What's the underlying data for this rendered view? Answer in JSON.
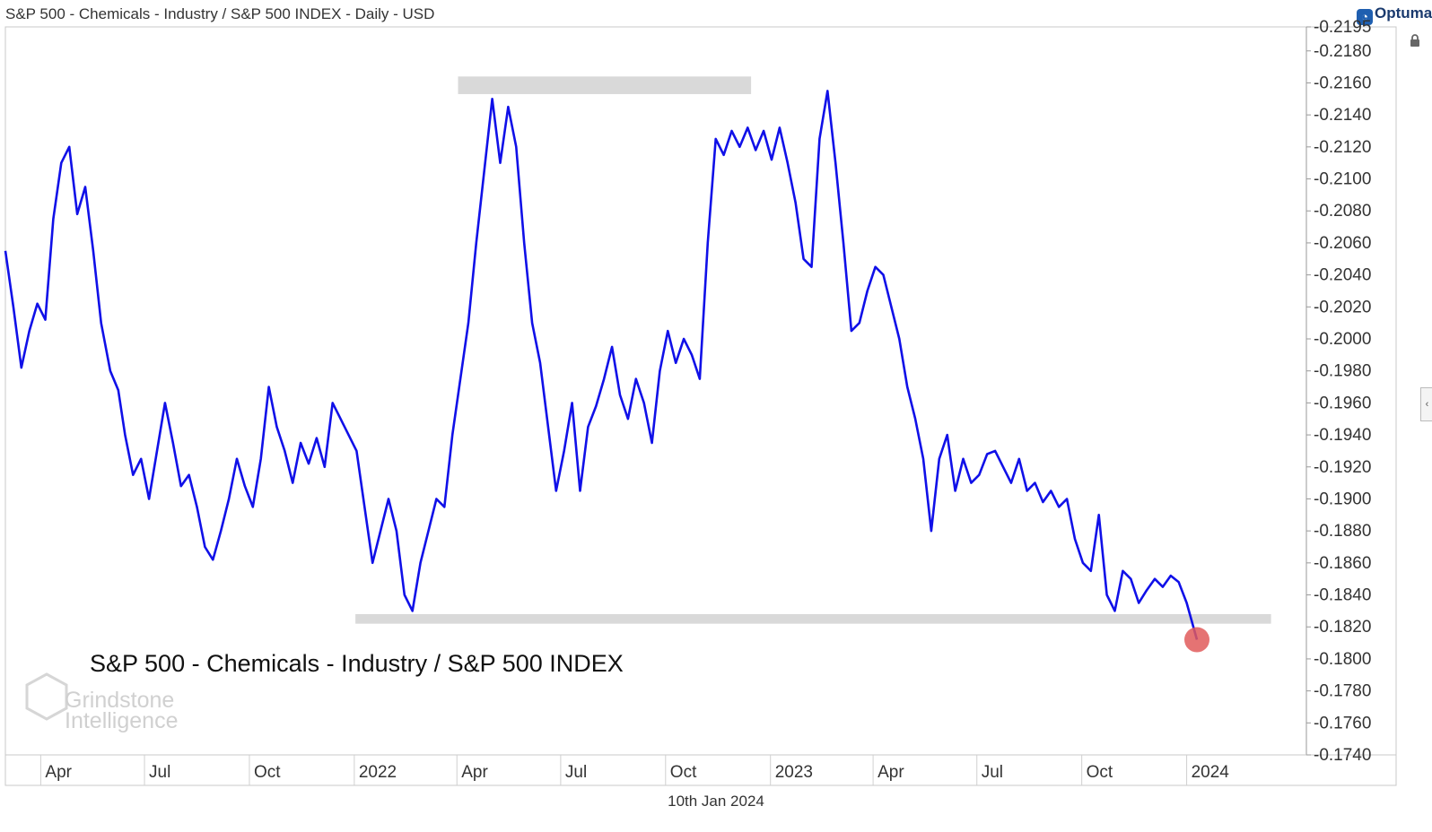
{
  "header": {
    "title": "S&P 500 - Chemicals - Industry / S&P 500 INDEX - Daily - USD",
    "brand": "Optuma"
  },
  "footer": {
    "date": "10th Jan 2024"
  },
  "watermark": {
    "line1": "Grindstone",
    "line2": "Intelligence"
  },
  "icons": {
    "lock": "lock-icon",
    "side_tab": "chevron-left-icon",
    "brand": "optuma-logo-icon"
  },
  "colors": {
    "line": "#1010e8",
    "band": "#d9d9d9",
    "marker": "#e05a5a"
  },
  "chart_data": {
    "type": "line",
    "title": "S&P 500 - Chemicals - Industry / S&P 500 INDEX",
    "xlabel": "",
    "ylabel": "",
    "ylim": [
      0.174,
      0.2195
    ],
    "xlim": [
      "2021-03-01",
      "2024-04-15"
    ],
    "y_ticks": [
      "0.2195",
      "0.2180",
      "0.2160",
      "0.2140",
      "0.2120",
      "0.2100",
      "0.2080",
      "0.2060",
      "0.2040",
      "0.2020",
      "0.2000",
      "0.1980",
      "0.1960",
      "0.1940",
      "0.1920",
      "0.1900",
      "0.1880",
      "0.1860",
      "0.1840",
      "0.1820",
      "0.1800",
      "0.1780",
      "0.1760",
      "0.1740"
    ],
    "x_ticks": [
      {
        "label": "Apr",
        "date": "2021-04-01"
      },
      {
        "label": "Jul",
        "date": "2021-07-01"
      },
      {
        "label": "Oct",
        "date": "2021-10-01"
      },
      {
        "label": "2022",
        "date": "2022-01-01"
      },
      {
        "label": "Apr",
        "date": "2022-04-01"
      },
      {
        "label": "Jul",
        "date": "2022-07-01"
      },
      {
        "label": "Oct",
        "date": "2022-10-01"
      },
      {
        "label": "2023",
        "date": "2023-01-01"
      },
      {
        "label": "Apr",
        "date": "2023-04-01"
      },
      {
        "label": "Jul",
        "date": "2023-07-01"
      },
      {
        "label": "Oct",
        "date": "2023-10-01"
      },
      {
        "label": "2024",
        "date": "2024-01-01"
      }
    ],
    "bands": [
      {
        "name": "resistance",
        "y_low": 0.2153,
        "y_high": 0.2164,
        "x_start": "2022-04-02",
        "x_end": "2022-12-15"
      },
      {
        "name": "support",
        "y_low": 0.1822,
        "y_high": 0.1828,
        "x_start": "2022-01-02",
        "x_end": "2024-03-15"
      }
    ],
    "marker": {
      "x": "2024-01-10",
      "y": 0.1812
    },
    "series": [
      {
        "name": "S&P 500 - Chemicals - Industry / S&P 500 INDEX",
        "points": [
          [
            "2021-03-01",
            0.2055
          ],
          [
            "2021-03-08",
            0.202
          ],
          [
            "2021-03-15",
            0.1982
          ],
          [
            "2021-03-22",
            0.2005
          ],
          [
            "2021-03-29",
            0.2022
          ],
          [
            "2021-04-05",
            0.2012
          ],
          [
            "2021-04-12",
            0.2075
          ],
          [
            "2021-04-19",
            0.211
          ],
          [
            "2021-04-26",
            0.212
          ],
          [
            "2021-05-03",
            0.2078
          ],
          [
            "2021-05-10",
            0.2095
          ],
          [
            "2021-05-17",
            0.2055
          ],
          [
            "2021-05-24",
            0.201
          ],
          [
            "2021-06-01",
            0.198
          ],
          [
            "2021-06-08",
            0.1968
          ],
          [
            "2021-06-14",
            0.194
          ],
          [
            "2021-06-21",
            0.1915
          ],
          [
            "2021-06-28",
            0.1925
          ],
          [
            "2021-07-05",
            0.19
          ],
          [
            "2021-07-12",
            0.193
          ],
          [
            "2021-07-19",
            0.196
          ],
          [
            "2021-07-26",
            0.1935
          ],
          [
            "2021-08-02",
            0.1908
          ],
          [
            "2021-08-09",
            0.1915
          ],
          [
            "2021-08-16",
            0.1895
          ],
          [
            "2021-08-23",
            0.187
          ],
          [
            "2021-08-30",
            0.1862
          ],
          [
            "2021-09-06",
            0.188
          ],
          [
            "2021-09-13",
            0.19
          ],
          [
            "2021-09-20",
            0.1925
          ],
          [
            "2021-09-27",
            0.1908
          ],
          [
            "2021-10-04",
            0.1895
          ],
          [
            "2021-10-11",
            0.1925
          ],
          [
            "2021-10-18",
            0.197
          ],
          [
            "2021-10-25",
            0.1945
          ],
          [
            "2021-11-01",
            0.193
          ],
          [
            "2021-11-08",
            0.191
          ],
          [
            "2021-11-15",
            0.1935
          ],
          [
            "2021-11-22",
            0.1922
          ],
          [
            "2021-11-29",
            0.1938
          ],
          [
            "2021-12-06",
            0.192
          ],
          [
            "2021-12-13",
            0.196
          ],
          [
            "2021-12-20",
            0.195
          ],
          [
            "2021-12-27",
            0.194
          ],
          [
            "2022-01-03",
            0.193
          ],
          [
            "2022-01-10",
            0.1895
          ],
          [
            "2022-01-17",
            0.186
          ],
          [
            "2022-01-24",
            0.188
          ],
          [
            "2022-01-31",
            0.19
          ],
          [
            "2022-02-07",
            0.188
          ],
          [
            "2022-02-14",
            0.184
          ],
          [
            "2022-02-21",
            0.183
          ],
          [
            "2022-02-28",
            0.186
          ],
          [
            "2022-03-07",
            0.188
          ],
          [
            "2022-03-14",
            0.19
          ],
          [
            "2022-03-21",
            0.1895
          ],
          [
            "2022-03-28",
            0.194
          ],
          [
            "2022-04-04",
            0.1975
          ],
          [
            "2022-04-11",
            0.201
          ],
          [
            "2022-04-18",
            0.206
          ],
          [
            "2022-04-25",
            0.2105
          ],
          [
            "2022-05-02",
            0.215
          ],
          [
            "2022-05-09",
            0.211
          ],
          [
            "2022-05-16",
            0.2145
          ],
          [
            "2022-05-23",
            0.212
          ],
          [
            "2022-05-30",
            0.206
          ],
          [
            "2022-06-06",
            0.201
          ],
          [
            "2022-06-13",
            0.1985
          ],
          [
            "2022-06-20",
            0.1945
          ],
          [
            "2022-06-27",
            0.1905
          ],
          [
            "2022-07-04",
            0.193
          ],
          [
            "2022-07-11",
            0.196
          ],
          [
            "2022-07-18",
            0.1905
          ],
          [
            "2022-07-25",
            0.1945
          ],
          [
            "2022-08-01",
            0.1958
          ],
          [
            "2022-08-08",
            0.1975
          ],
          [
            "2022-08-15",
            0.1995
          ],
          [
            "2022-08-22",
            0.1965
          ],
          [
            "2022-08-29",
            0.195
          ],
          [
            "2022-09-05",
            0.1975
          ],
          [
            "2022-09-12",
            0.196
          ],
          [
            "2022-09-19",
            0.1935
          ],
          [
            "2022-09-26",
            0.198
          ],
          [
            "2022-10-03",
            0.2005
          ],
          [
            "2022-10-10",
            0.1985
          ],
          [
            "2022-10-17",
            0.2
          ],
          [
            "2022-10-24",
            0.199
          ],
          [
            "2022-10-31",
            0.1975
          ],
          [
            "2022-11-07",
            0.206
          ],
          [
            "2022-11-14",
            0.2125
          ],
          [
            "2022-11-21",
            0.2115
          ],
          [
            "2022-11-28",
            0.213
          ],
          [
            "2022-12-05",
            0.212
          ],
          [
            "2022-12-12",
            0.2132
          ],
          [
            "2022-12-19",
            0.2118
          ],
          [
            "2022-12-26",
            0.213
          ],
          [
            "2023-01-02",
            0.2112
          ],
          [
            "2023-01-09",
            0.2132
          ],
          [
            "2023-01-16",
            0.211
          ],
          [
            "2023-01-23",
            0.2085
          ],
          [
            "2023-01-30",
            0.205
          ],
          [
            "2023-02-06",
            0.2045
          ],
          [
            "2023-02-13",
            0.2125
          ],
          [
            "2023-02-20",
            0.2155
          ],
          [
            "2023-02-27",
            0.211
          ],
          [
            "2023-03-06",
            0.206
          ],
          [
            "2023-03-13",
            0.2005
          ],
          [
            "2023-03-20",
            0.201
          ],
          [
            "2023-03-27",
            0.203
          ],
          [
            "2023-04-03",
            0.2045
          ],
          [
            "2023-04-10",
            0.204
          ],
          [
            "2023-04-17",
            0.202
          ],
          [
            "2023-04-24",
            0.2
          ],
          [
            "2023-05-01",
            0.197
          ],
          [
            "2023-05-08",
            0.195
          ],
          [
            "2023-05-15",
            0.1925
          ],
          [
            "2023-05-22",
            0.188
          ],
          [
            "2023-05-29",
            0.1925
          ],
          [
            "2023-06-05",
            0.194
          ],
          [
            "2023-06-12",
            0.1905
          ],
          [
            "2023-06-19",
            0.1925
          ],
          [
            "2023-06-26",
            0.191
          ],
          [
            "2023-07-03",
            0.1915
          ],
          [
            "2023-07-10",
            0.1928
          ],
          [
            "2023-07-17",
            0.193
          ],
          [
            "2023-07-24",
            0.192
          ],
          [
            "2023-07-31",
            0.191
          ],
          [
            "2023-08-07",
            0.1925
          ],
          [
            "2023-08-14",
            0.1905
          ],
          [
            "2023-08-21",
            0.191
          ],
          [
            "2023-08-28",
            0.1898
          ],
          [
            "2023-09-04",
            0.1905
          ],
          [
            "2023-09-11",
            0.1895
          ],
          [
            "2023-09-18",
            0.19
          ],
          [
            "2023-09-25",
            0.1875
          ],
          [
            "2023-10-02",
            0.186
          ],
          [
            "2023-10-09",
            0.1855
          ],
          [
            "2023-10-16",
            0.189
          ],
          [
            "2023-10-23",
            0.184
          ],
          [
            "2023-10-30",
            0.183
          ],
          [
            "2023-11-06",
            0.1855
          ],
          [
            "2023-11-13",
            0.185
          ],
          [
            "2023-11-20",
            0.1835
          ],
          [
            "2023-11-27",
            0.1843
          ],
          [
            "2023-12-04",
            0.185
          ],
          [
            "2023-12-11",
            0.1845
          ],
          [
            "2023-12-18",
            0.1852
          ],
          [
            "2023-12-25",
            0.1848
          ],
          [
            "2024-01-01",
            0.1835
          ],
          [
            "2024-01-10",
            0.1812
          ]
        ]
      }
    ]
  }
}
